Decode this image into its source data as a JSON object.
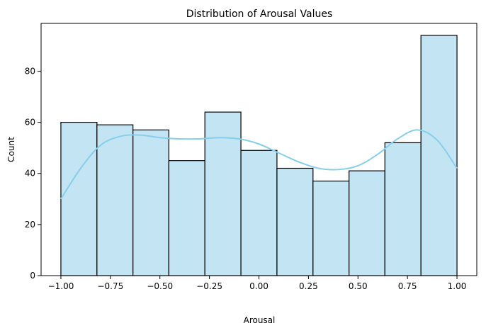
{
  "chart_data": {
    "type": "bar",
    "title": "Distribution of Arousal Values",
    "xlabel": "Arousal",
    "ylabel": "Count",
    "bin_edges": [
      -1.0,
      -0.818,
      -0.636,
      -0.455,
      -0.273,
      -0.091,
      0.091,
      0.273,
      0.455,
      0.636,
      0.818,
      1.0
    ],
    "values": [
      60,
      59,
      57,
      45,
      64,
      49,
      42,
      37,
      41,
      52,
      94
    ],
    "xlim": [
      -1.1,
      1.1
    ],
    "ylim": [
      0,
      98.7
    ],
    "xticks": [
      -1.0,
      -0.75,
      -0.5,
      -0.25,
      0.0,
      0.25,
      0.5,
      0.75,
      1.0
    ],
    "xtick_labels": [
      "−1.00",
      "−0.75",
      "−0.50",
      "−0.25",
      "0.00",
      "0.25",
      "0.50",
      "0.75",
      "1.00"
    ],
    "yticks": [
      0,
      20,
      40,
      60,
      80
    ],
    "ytick_labels": [
      "0",
      "20",
      "40",
      "60",
      "80"
    ],
    "kde": {
      "x": [
        -1.0,
        -0.9,
        -0.8,
        -0.7,
        -0.6,
        -0.5,
        -0.4,
        -0.3,
        -0.2,
        -0.1,
        0.0,
        0.1,
        0.2,
        0.3,
        0.4,
        0.5,
        0.6,
        0.7,
        0.8,
        0.9,
        1.0
      ],
      "y": [
        30,
        42,
        51,
        54.5,
        55,
        54,
        53.5,
        53.5,
        54,
        53.5,
        51.5,
        48,
        44.5,
        42,
        41.5,
        43,
        47.5,
        53.5,
        57,
        53,
        42
      ]
    },
    "colors": {
      "bar_fill": "#c3e4f3",
      "bar_edge": "#000000",
      "kde_line": "#87ceeb"
    },
    "grid": false,
    "legend": "none"
  }
}
